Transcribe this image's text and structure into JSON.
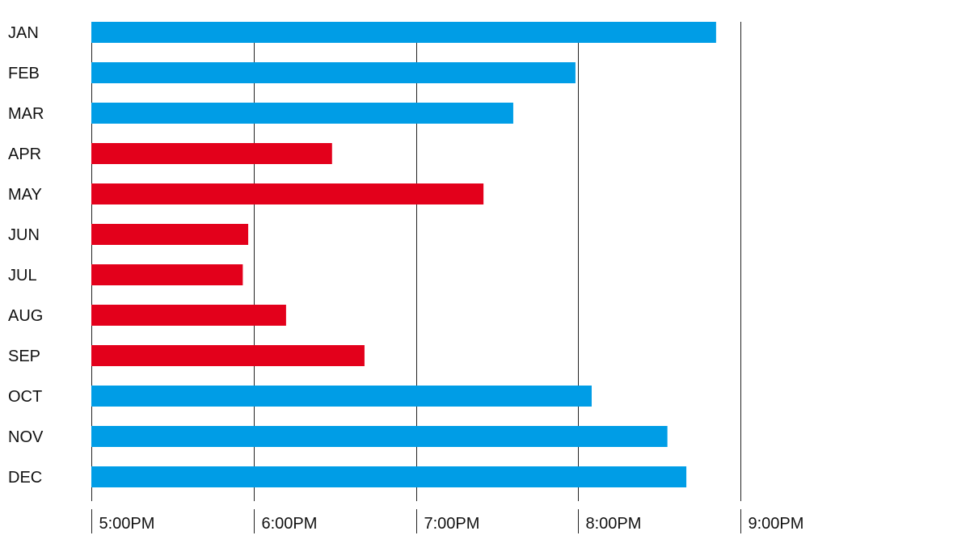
{
  "chart_data": {
    "type": "bar",
    "orientation": "horizontal",
    "categories": [
      "JAN",
      "FEB",
      "MAR",
      "APR",
      "MAY",
      "JUN",
      "JUL",
      "AUG",
      "SEP",
      "OCT",
      "NOV",
      "DEC"
    ],
    "values": [
      "20:51",
      "19:59",
      "19:36",
      "18:29",
      "19:25",
      "17:58",
      "17:56",
      "18:12",
      "18:41",
      "20:05",
      "20:33",
      "20:40"
    ],
    "value_unit": "time of day (HH:MM, 24h)",
    "bar_colors": [
      "#009DE6",
      "#009DE6",
      "#009DE6",
      "#E3001B",
      "#E3001B",
      "#E3001B",
      "#E3001B",
      "#E3001B",
      "#E3001B",
      "#009DE6",
      "#009DE6",
      "#009DE6"
    ],
    "xlim": [
      "17:00",
      "21:00"
    ],
    "xticks": [
      "17:00",
      "18:00",
      "19:00",
      "20:00",
      "21:00"
    ],
    "xtick_labels": [
      "5:00PM",
      "6:00PM",
      "7:00PM",
      "8:00PM",
      "9:00PM"
    ],
    "grid": true,
    "title": "",
    "xlabel": "",
    "ylabel": ""
  }
}
